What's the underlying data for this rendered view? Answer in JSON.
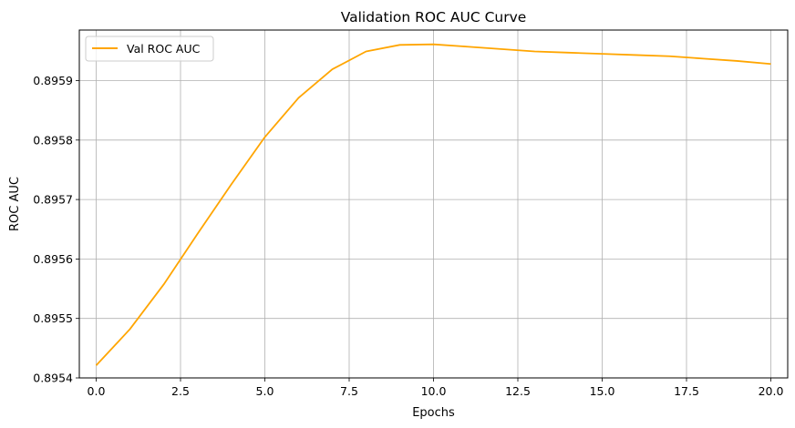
{
  "chart_data": {
    "type": "line",
    "title": "Validation ROC AUC Curve",
    "xlabel": "Epochs",
    "ylabel": "ROC AUC",
    "xlim": [
      -0.5,
      20.5
    ],
    "ylim": [
      0.8954,
      0.895985
    ],
    "xticks": [
      0,
      2.5,
      5,
      7.5,
      10,
      12.5,
      15,
      17.5,
      20
    ],
    "xtick_labels": [
      "0.0",
      "2.5",
      "5.0",
      "7.5",
      "10.0",
      "12.5",
      "15.0",
      "17.5",
      "20.0"
    ],
    "yticks": [
      0.8954,
      0.8955,
      0.8956,
      0.8957,
      0.8958,
      0.8959
    ],
    "ytick_labels": [
      "0.8954",
      "0.8955",
      "0.8956",
      "0.8957",
      "0.8958",
      "0.8959"
    ],
    "grid": true,
    "legend": "upper-left",
    "series": [
      {
        "name": "Val ROC AUC",
        "color": "#FFA500",
        "x": [
          0,
          1,
          2,
          3,
          4,
          5,
          6,
          7,
          8,
          9,
          10,
          11,
          12,
          13,
          14,
          15,
          16,
          17,
          18,
          19,
          20
        ],
        "y": [
          0.895421,
          0.895482,
          0.895557,
          0.895642,
          0.895725,
          0.895805,
          0.895871,
          0.895919,
          0.895949,
          0.89596,
          0.895961,
          0.895957,
          0.895953,
          0.895949,
          0.895947,
          0.895945,
          0.895943,
          0.895941,
          0.895937,
          0.895933,
          0.895928
        ]
      }
    ]
  }
}
